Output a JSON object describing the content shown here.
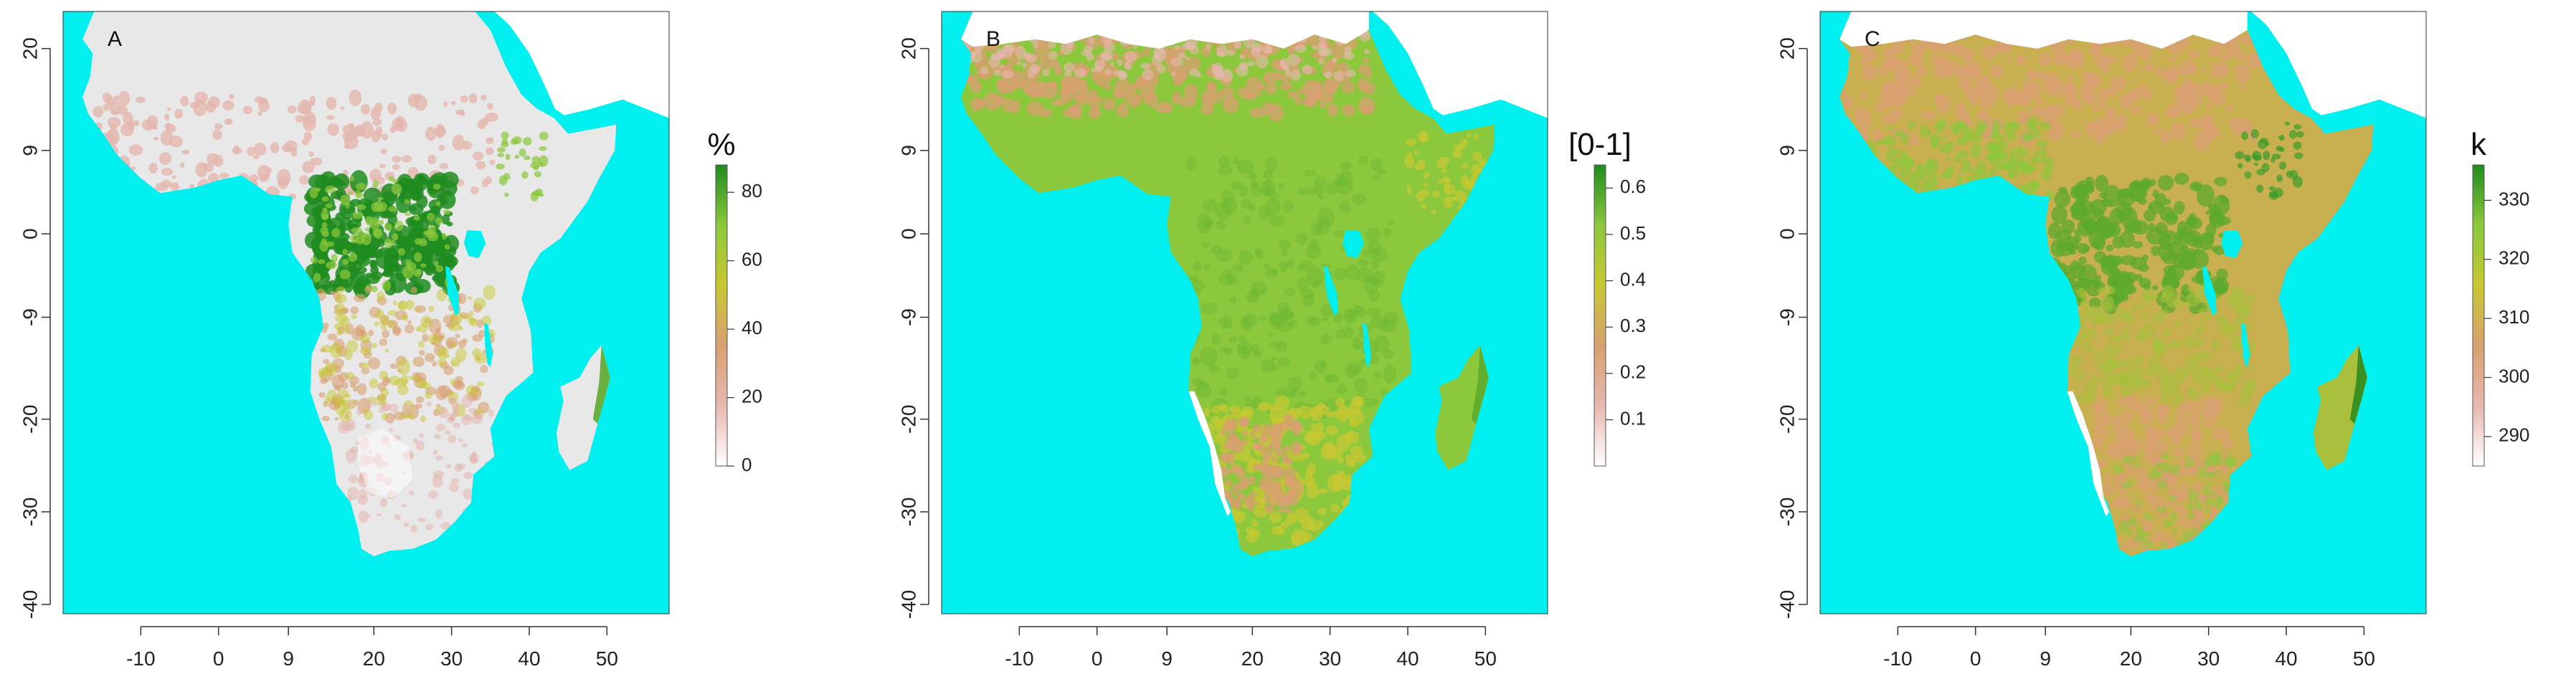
{
  "figure": {
    "panels": [
      {
        "label": "A",
        "x_ticks": [
          "-10",
          "0",
          "9",
          "20",
          "30",
          "40",
          "50"
        ],
        "y_ticks": [
          "20",
          "9",
          "0",
          "-9",
          "-20",
          "-30",
          "-40"
        ],
        "legend": {
          "title": "%",
          "ticks": [
            "80",
            "60",
            "40",
            "20",
            "0"
          ],
          "value_range": [
            0,
            88
          ],
          "tick_values": [
            80,
            60,
            40,
            20,
            0
          ],
          "colors": [
            "#ffffff",
            "#e8b8b0",
            "#d8a070",
            "#c8c832",
            "#8cc83c",
            "#1e8c1e"
          ]
        },
        "land_color": "#e8e8e8"
      },
      {
        "label": "B",
        "x_ticks": [
          "-10",
          "0",
          "9",
          "20",
          "30",
          "40",
          "50"
        ],
        "y_ticks": [
          "20",
          "9",
          "0",
          "-9",
          "-20",
          "-30",
          "-40"
        ],
        "legend": {
          "title": "[0-1]",
          "ticks": [
            "0.6",
            "0.5",
            "0.4",
            "0.3",
            "0.2",
            "0.1"
          ],
          "value_range": [
            0.0,
            0.65
          ],
          "tick_values": [
            0.6,
            0.5,
            0.4,
            0.3,
            0.2,
            0.1
          ],
          "colors": [
            "#ffffff",
            "#e8b8b0",
            "#d8a070",
            "#c8c832",
            "#8cc83c",
            "#1e8c1e"
          ]
        },
        "land_color": "#8cc83c"
      },
      {
        "label": "C",
        "x_ticks": [
          "-10",
          "0",
          "9",
          "20",
          "30",
          "40",
          "50"
        ],
        "y_ticks": [
          "20",
          "9",
          "0",
          "-9",
          "-20",
          "-30",
          "-40"
        ],
        "legend": {
          "title": "k",
          "ticks": [
            "330",
            "320",
            "310",
            "300",
            "290"
          ],
          "value_range": [
            285,
            336
          ],
          "tick_values": [
            330,
            320,
            310,
            300,
            290
          ],
          "colors": [
            "#ffffff",
            "#e8b8b0",
            "#d8a070",
            "#c8c832",
            "#8cc83c",
            "#1e8c1e"
          ]
        },
        "land_color": "#c8b050"
      }
    ],
    "ocean_color": "#00f0f0",
    "desert_color": "#ffffff"
  }
}
